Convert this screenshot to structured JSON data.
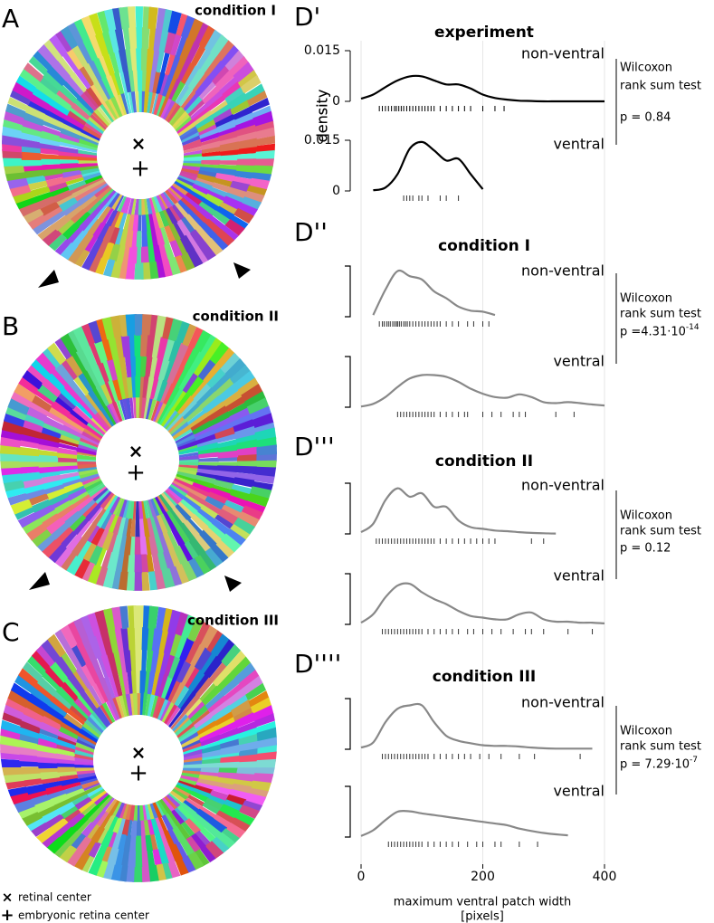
{
  "figure": {
    "panels": [
      {
        "label": "A",
        "title": "condition I"
      },
      {
        "label": "B",
        "title": "condition II"
      },
      {
        "label": "C",
        "title": "condition III"
      }
    ],
    "legend": [
      {
        "symbol": "×",
        "label": "retinal center"
      },
      {
        "symbol": "+",
        "label": "embryonic retina center"
      }
    ]
  },
  "chart_data": [
    {
      "type": "density",
      "panel": "D'",
      "title": "experiment",
      "ylim": [
        0,
        0.015
      ],
      "yticks": [
        0,
        0.015
      ],
      "ylabel": "density",
      "x": [
        0,
        20,
        40,
        60,
        80,
        100,
        120,
        140,
        160,
        180,
        200,
        220,
        240,
        260,
        280,
        300,
        320,
        340,
        360,
        380,
        400
      ],
      "series": [
        {
          "name": "non-ventral",
          "color": "#000000",
          "values": [
            0.0008,
            0.002,
            0.0042,
            0.0062,
            0.0074,
            0.0074,
            0.0062,
            0.005,
            0.005,
            0.0038,
            0.002,
            0.001,
            0.0005,
            0.0002,
            0.0001,
            0,
            0,
            0,
            0,
            0,
            0
          ],
          "rug": [
            30,
            35,
            40,
            45,
            50,
            55,
            58,
            62,
            66,
            70,
            75,
            80,
            85,
            90,
            95,
            100,
            105,
            110,
            115,
            120,
            130,
            140,
            150,
            160,
            170,
            180,
            200,
            220,
            235
          ]
        },
        {
          "name": "ventral",
          "color": "#000000",
          "values": [
            null,
            0.0002,
            0.001,
            0.005,
            0.0125,
            0.0145,
            0.012,
            0.009,
            0.0095,
            0.005,
            0.0005,
            null,
            null,
            null,
            null,
            null,
            null,
            null,
            null,
            null,
            null
          ],
          "rug": [
            70,
            75,
            80,
            85,
            95,
            100,
            110,
            130,
            140,
            160
          ]
        }
      ],
      "test": [
        "Wilcoxon",
        "rank sum test",
        "p = 0.84"
      ]
    },
    {
      "type": "density",
      "panel": "D''",
      "title": "condition I",
      "x": [
        0,
        20,
        40,
        60,
        80,
        100,
        120,
        140,
        160,
        180,
        200,
        220,
        240,
        260,
        280,
        300,
        320,
        340,
        360,
        380,
        400
      ],
      "series": [
        {
          "name": "non-ventral",
          "color": "#888888",
          "values": [
            null,
            0.0005,
            0.008,
            0.0135,
            0.012,
            0.011,
            0.0075,
            0.0055,
            0.003,
            0.0018,
            0.0015,
            0.0005,
            null,
            null,
            null,
            null,
            null,
            null,
            null,
            null,
            null
          ],
          "rug": [
            30,
            35,
            38,
            42,
            45,
            48,
            52,
            55,
            58,
            60,
            63,
            66,
            70,
            73,
            76,
            80,
            85,
            90,
            95,
            100,
            105,
            110,
            115,
            120,
            125,
            130,
            140,
            150,
            160,
            175,
            185,
            200,
            210
          ]
        },
        {
          "name": "ventral",
          "color": "#888888",
          "values": [
            0.0002,
            0.001,
            0.003,
            0.006,
            0.0085,
            0.0095,
            0.0095,
            0.009,
            0.0075,
            0.0055,
            0.004,
            0.003,
            0.0028,
            0.0038,
            0.003,
            0.0015,
            0.0012,
            0.0015,
            0.0012,
            0.0008,
            0.0005
          ],
          "rug": [
            60,
            65,
            70,
            75,
            80,
            85,
            90,
            95,
            100,
            105,
            110,
            115,
            120,
            130,
            140,
            150,
            160,
            170,
            175,
            200,
            215,
            230,
            250,
            260,
            270,
            320,
            350
          ]
        }
      ],
      "test": [
        "Wilcoxon",
        "rank sum test",
        "p =4.31·10",
        "-14"
      ]
    },
    {
      "type": "density",
      "panel": "D'''",
      "title": "condition II",
      "x": [
        0,
        20,
        40,
        60,
        80,
        100,
        120,
        140,
        160,
        180,
        200,
        220,
        240,
        260,
        280,
        300,
        320,
        340,
        360,
        380,
        400
      ],
      "series": [
        {
          "name": "non-ventral",
          "color": "#888888",
          "values": [
            0.0005,
            0.003,
            0.01,
            0.0135,
            0.011,
            0.012,
            0.008,
            0.008,
            0.004,
            0.002,
            0.0015,
            0.001,
            0.0008,
            0.0005,
            0.0003,
            0.0002,
            0.0001,
            null,
            null,
            null,
            null
          ],
          "rug": [
            25,
            30,
            35,
            40,
            45,
            50,
            55,
            60,
            65,
            70,
            75,
            80,
            85,
            90,
            95,
            100,
            105,
            110,
            115,
            120,
            130,
            140,
            150,
            160,
            170,
            180,
            190,
            200,
            210,
            220,
            280,
            300
          ]
        },
        {
          "name": "ventral",
          "color": "#888888",
          "values": [
            0.0005,
            0.003,
            0.008,
            0.0115,
            0.012,
            0.0095,
            0.0075,
            0.006,
            0.004,
            0.0025,
            0.002,
            0.0015,
            0.0015,
            0.003,
            0.0035,
            0.0015,
            0.0008,
            0.0008,
            0.0005,
            0.0005,
            0.0003
          ],
          "rug": [
            35,
            40,
            45,
            50,
            55,
            60,
            65,
            70,
            75,
            80,
            85,
            90,
            95,
            100,
            110,
            120,
            130,
            140,
            150,
            160,
            175,
            185,
            200,
            215,
            230,
            250,
            270,
            280,
            300,
            340,
            380
          ]
        }
      ],
      "test": [
        "Wilcoxon",
        "rank sum test",
        "p = 0.12"
      ]
    },
    {
      "type": "density",
      "panel": "D''''",
      "title": "condition III",
      "x": [
        0,
        20,
        40,
        60,
        80,
        100,
        120,
        140,
        160,
        180,
        200,
        220,
        240,
        260,
        280,
        300,
        320,
        340,
        360,
        380,
        400
      ],
      "xlim": [
        0,
        400
      ],
      "xticks": [
        0,
        200,
        400
      ],
      "xlabel": [
        "maximum ventral patch width",
        "[pixels]"
      ],
      "series": [
        {
          "name": "non-ventral",
          "color": "#888888",
          "values": [
            0.0005,
            0.002,
            0.008,
            0.012,
            0.013,
            0.013,
            0.008,
            0.004,
            0.0025,
            0.0018,
            0.0012,
            0.001,
            0.001,
            0.0008,
            0.0005,
            0.0003,
            0.0002,
            0.0002,
            0.0002,
            0.0002,
            null
          ],
          "rug": [
            35,
            40,
            45,
            50,
            55,
            60,
            65,
            70,
            75,
            80,
            85,
            90,
            95,
            100,
            105,
            110,
            120,
            130,
            140,
            150,
            160,
            170,
            180,
            195,
            210,
            230,
            260,
            285,
            360
          ]
        },
        {
          "name": "ventral",
          "color": "#888888",
          "values": [
            0.0003,
            0.002,
            0.005,
            0.0075,
            0.0076,
            0.007,
            0.0065,
            0.006,
            0.0055,
            0.005,
            0.0045,
            0.004,
            0.0035,
            0.0025,
            0.0018,
            0.0012,
            0.0008,
            0.0005,
            null,
            null,
            null
          ],
          "rug": [
            45,
            50,
            55,
            60,
            65,
            70,
            75,
            80,
            85,
            90,
            95,
            100,
            110,
            120,
            130,
            140,
            150,
            160,
            175,
            190,
            200,
            220,
            230,
            260,
            290
          ]
        }
      ],
      "test": [
        "Wilcoxon",
        "rank sum test",
        "p = 7.29·10",
        "-7"
      ]
    }
  ]
}
